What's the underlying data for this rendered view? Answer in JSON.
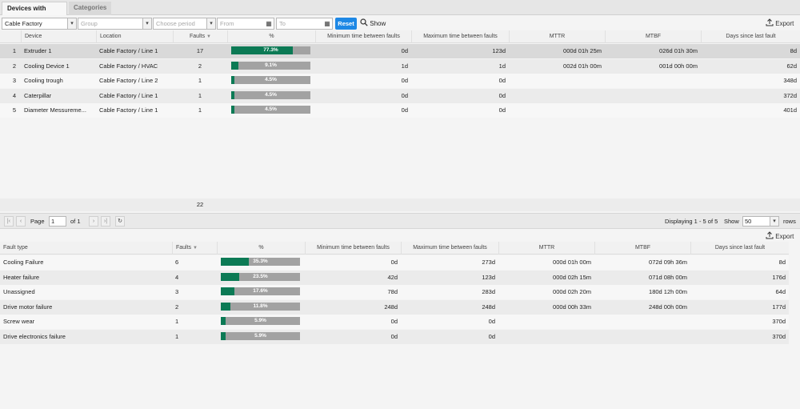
{
  "tabs": [
    {
      "label": "Devices with faults"
    },
    {
      "label": "Categories"
    }
  ],
  "filters": {
    "factory": "Cable Factory",
    "group_placeholder": "Group",
    "period_placeholder": "Choose period",
    "from_placeholder": "From",
    "to_placeholder": "To",
    "reset_label": "Reset",
    "show_label": "Show"
  },
  "export_label": "Export",
  "devices": {
    "headers": [
      "Device",
      "Location",
      "Faults",
      "%",
      "Minimum time between faults",
      "Maximum time between faults",
      "MTTR",
      "MTBF",
      "Days since last fault"
    ],
    "rows": [
      {
        "idx": "1",
        "device": "Extruder 1",
        "location": "Cable Factory / Line 1",
        "faults": "17",
        "pct": 77.3,
        "pct_label": "77.3%",
        "min": "0d",
        "max": "123d",
        "mttr": "000d 01h 25m",
        "mtbf": "026d 01h 30m",
        "days": "8d"
      },
      {
        "idx": "2",
        "device": "Cooling Device 1",
        "location": "Cable Factory / HVAC",
        "faults": "2",
        "pct": 9.1,
        "pct_label": "9.1%",
        "min": "1d",
        "max": "1d",
        "mttr": "002d 01h 00m",
        "mtbf": "001d 00h 00m",
        "days": "62d"
      },
      {
        "idx": "3",
        "device": "Cooling trough",
        "location": "Cable Factory / Line 2",
        "faults": "1",
        "pct": 4.5,
        "pct_label": "4.5%",
        "min": "0d",
        "max": "0d",
        "mttr": "",
        "mtbf": "",
        "days": "348d"
      },
      {
        "idx": "4",
        "device": "Caterpillar",
        "location": "Cable Factory / Line 1",
        "faults": "1",
        "pct": 4.5,
        "pct_label": "4.5%",
        "min": "0d",
        "max": "0d",
        "mttr": "",
        "mtbf": "",
        "days": "372d"
      },
      {
        "idx": "5",
        "device": "Diameter Messureme...",
        "location": "Cable Factory / Line 1",
        "faults": "1",
        "pct": 4.5,
        "pct_label": "4.5%",
        "min": "0d",
        "max": "0d",
        "mttr": "",
        "mtbf": "",
        "days": "401d"
      }
    ],
    "total_faults": "22"
  },
  "pager": {
    "page_label": "Page",
    "page_value": "1",
    "of_label": "of 1",
    "displaying": "Displaying 1 - 5 of 5",
    "show_label": "Show",
    "rows_value": "50",
    "rows_label": "rows"
  },
  "fault_types": {
    "headers": [
      "Fault type",
      "Faults",
      "%",
      "Minimum time between faults",
      "Maximum time between faults",
      "MTTR",
      "MTBF",
      "Days since last fault"
    ],
    "rows": [
      {
        "type": "Cooling Failure",
        "faults": "6",
        "pct": 35.3,
        "pct_label": "35.3%",
        "min": "0d",
        "max": "273d",
        "mttr": "000d 01h 00m",
        "mtbf": "072d 09h 36m",
        "days": "8d"
      },
      {
        "type": "Heater failure",
        "faults": "4",
        "pct": 23.5,
        "pct_label": "23.5%",
        "min": "42d",
        "max": "123d",
        "mttr": "000d 02h 15m",
        "mtbf": "071d 08h 00m",
        "days": "176d"
      },
      {
        "type": "Unassigned",
        "faults": "3",
        "pct": 17.6,
        "pct_label": "17.6%",
        "min": "78d",
        "max": "283d",
        "mttr": "000d 02h 20m",
        "mtbf": "180d 12h 00m",
        "days": "64d"
      },
      {
        "type": "Drive motor failure",
        "faults": "2",
        "pct": 11.8,
        "pct_label": "11.8%",
        "min": "248d",
        "max": "248d",
        "mttr": "000d 00h 33m",
        "mtbf": "248d 00h 00m",
        "days": "177d"
      },
      {
        "type": "Screw wear",
        "faults": "1",
        "pct": 5.9,
        "pct_label": "5.9%",
        "min": "0d",
        "max": "0d",
        "mttr": "",
        "mtbf": "",
        "days": "370d"
      },
      {
        "type": "Drive electronics failure",
        "faults": "1",
        "pct": 5.9,
        "pct_label": "5.9%",
        "min": "0d",
        "max": "0d",
        "mttr": "",
        "mtbf": "",
        "days": "370d"
      }
    ]
  },
  "icons": {
    "dropdown": "chevron-down-icon",
    "calendar": "calendar-icon",
    "search": "search-icon",
    "export": "export-icon",
    "sort": "sort-desc-icon",
    "refresh": "refresh-icon"
  }
}
